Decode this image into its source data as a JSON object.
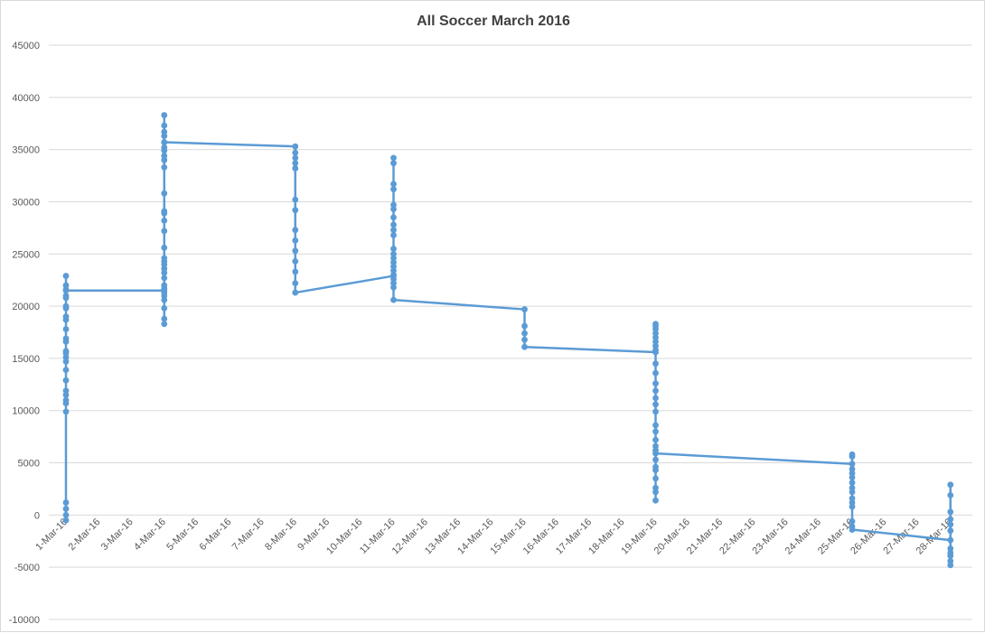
{
  "chart_data": {
    "type": "line",
    "title": "All Soccer March 2016",
    "xlabel": "",
    "ylabel": "",
    "ylim": [
      -10000,
      45000
    ],
    "yticks": [
      -10000,
      -5000,
      0,
      5000,
      10000,
      15000,
      20000,
      25000,
      30000,
      35000,
      40000,
      45000
    ],
    "grid": true,
    "legend": "none",
    "x_tick_labels": [
      "1-Mar-16",
      "2-Mar-16",
      "3-Mar-16",
      "4-Mar-16",
      "5-Mar-16",
      "6-Mar-16",
      "7-Mar-16",
      "8-Mar-16",
      "9-Mar-16",
      "10-Mar-16",
      "11-Mar-16",
      "12-Mar-16",
      "13-Mar-16",
      "14-Mar-16",
      "15-Mar-16",
      "16-Mar-16",
      "17-Mar-16",
      "18-Mar-16",
      "19-Mar-16",
      "20-Mar-16",
      "21-Mar-16",
      "22-Mar-16",
      "23-Mar-16",
      "24-Mar-16",
      "25-Mar-16",
      "26-Mar-16",
      "27-Mar-16",
      "28-Mar-16"
    ],
    "colors": {
      "series": "#5b9bd5",
      "grid": "#d9d9d9",
      "text": "#595959",
      "title": "#404040"
    },
    "series": [
      {
        "points": [
          {
            "x": "1-Mar-16",
            "y": -500
          },
          {
            "x": "1-Mar-16",
            "y": 0
          },
          {
            "x": "1-Mar-16",
            "y": 600
          },
          {
            "x": "1-Mar-16",
            "y": 1200
          },
          {
            "x": "1-Mar-16",
            "y": 9900
          },
          {
            "x": "1-Mar-16",
            "y": 10700
          },
          {
            "x": "1-Mar-16",
            "y": 11000
          },
          {
            "x": "1-Mar-16",
            "y": 11500
          },
          {
            "x": "1-Mar-16",
            "y": 11900
          },
          {
            "x": "1-Mar-16",
            "y": 12900
          },
          {
            "x": "1-Mar-16",
            "y": 13900
          },
          {
            "x": "1-Mar-16",
            "y": 14700
          },
          {
            "x": "1-Mar-16",
            "y": 15100
          },
          {
            "x": "1-Mar-16",
            "y": 15500
          },
          {
            "x": "1-Mar-16",
            "y": 15700
          },
          {
            "x": "1-Mar-16",
            "y": 16600
          },
          {
            "x": "1-Mar-16",
            "y": 16900
          },
          {
            "x": "1-Mar-16",
            "y": 17800
          },
          {
            "x": "1-Mar-16",
            "y": 18700
          },
          {
            "x": "1-Mar-16",
            "y": 19000
          },
          {
            "x": "1-Mar-16",
            "y": 19800
          },
          {
            "x": "1-Mar-16",
            "y": 20000
          },
          {
            "x": "1-Mar-16",
            "y": 20800
          },
          {
            "x": "1-Mar-16",
            "y": 21000
          },
          {
            "x": "1-Mar-16",
            "y": 21600
          },
          {
            "x": "1-Mar-16",
            "y": 22000
          },
          {
            "x": "1-Mar-16",
            "y": 22900
          },
          {
            "x": "1-Mar-16",
            "y": 21500
          },
          {
            "x": "4-Mar-16",
            "y": 21500
          },
          {
            "x": "4-Mar-16",
            "y": 18300
          },
          {
            "x": "4-Mar-16",
            "y": 18800
          },
          {
            "x": "4-Mar-16",
            "y": 19800
          },
          {
            "x": "4-Mar-16",
            "y": 20600
          },
          {
            "x": "4-Mar-16",
            "y": 21000
          },
          {
            "x": "4-Mar-16",
            "y": 21300
          },
          {
            "x": "4-Mar-16",
            "y": 21700
          },
          {
            "x": "4-Mar-16",
            "y": 22000
          },
          {
            "x": "4-Mar-16",
            "y": 22700
          },
          {
            "x": "4-Mar-16",
            "y": 23200
          },
          {
            "x": "4-Mar-16",
            "y": 23600
          },
          {
            "x": "4-Mar-16",
            "y": 24000
          },
          {
            "x": "4-Mar-16",
            "y": 24300
          },
          {
            "x": "4-Mar-16",
            "y": 24600
          },
          {
            "x": "4-Mar-16",
            "y": 25600
          },
          {
            "x": "4-Mar-16",
            "y": 27200
          },
          {
            "x": "4-Mar-16",
            "y": 28200
          },
          {
            "x": "4-Mar-16",
            "y": 28900
          },
          {
            "x": "4-Mar-16",
            "y": 29100
          },
          {
            "x": "4-Mar-16",
            "y": 30800
          },
          {
            "x": "4-Mar-16",
            "y": 33300
          },
          {
            "x": "4-Mar-16",
            "y": 34000
          },
          {
            "x": "4-Mar-16",
            "y": 34400
          },
          {
            "x": "4-Mar-16",
            "y": 34900
          },
          {
            "x": "4-Mar-16",
            "y": 35200
          },
          {
            "x": "4-Mar-16",
            "y": 35700
          },
          {
            "x": "4-Mar-16",
            "y": 36300
          },
          {
            "x": "4-Mar-16",
            "y": 36700
          },
          {
            "x": "4-Mar-16",
            "y": 37300
          },
          {
            "x": "4-Mar-16",
            "y": 38300
          },
          {
            "x": "4-Mar-16",
            "y": 35700
          },
          {
            "x": "8-Mar-16",
            "y": 35300
          },
          {
            "x": "8-Mar-16",
            "y": 34700
          },
          {
            "x": "8-Mar-16",
            "y": 34200
          },
          {
            "x": "8-Mar-16",
            "y": 33700
          },
          {
            "x": "8-Mar-16",
            "y": 33200
          },
          {
            "x": "8-Mar-16",
            "y": 30200
          },
          {
            "x": "8-Mar-16",
            "y": 29200
          },
          {
            "x": "8-Mar-16",
            "y": 27300
          },
          {
            "x": "8-Mar-16",
            "y": 26300
          },
          {
            "x": "8-Mar-16",
            "y": 25300
          },
          {
            "x": "8-Mar-16",
            "y": 24300
          },
          {
            "x": "8-Mar-16",
            "y": 23300
          },
          {
            "x": "8-Mar-16",
            "y": 22200
          },
          {
            "x": "8-Mar-16",
            "y": 21300
          },
          {
            "x": "11-Mar-16",
            "y": 22900
          },
          {
            "x": "11-Mar-16",
            "y": 21800
          },
          {
            "x": "11-Mar-16",
            "y": 22200
          },
          {
            "x": "11-Mar-16",
            "y": 22600
          },
          {
            "x": "11-Mar-16",
            "y": 23000
          },
          {
            "x": "11-Mar-16",
            "y": 23400
          },
          {
            "x": "11-Mar-16",
            "y": 23800
          },
          {
            "x": "11-Mar-16",
            "y": 24200
          },
          {
            "x": "11-Mar-16",
            "y": 24600
          },
          {
            "x": "11-Mar-16",
            "y": 25000
          },
          {
            "x": "11-Mar-16",
            "y": 25500
          },
          {
            "x": "11-Mar-16",
            "y": 26800
          },
          {
            "x": "11-Mar-16",
            "y": 27300
          },
          {
            "x": "11-Mar-16",
            "y": 27800
          },
          {
            "x": "11-Mar-16",
            "y": 28500
          },
          {
            "x": "11-Mar-16",
            "y": 29300
          },
          {
            "x": "11-Mar-16",
            "y": 29700
          },
          {
            "x": "11-Mar-16",
            "y": 31200
          },
          {
            "x": "11-Mar-16",
            "y": 31700
          },
          {
            "x": "11-Mar-16",
            "y": 33700
          },
          {
            "x": "11-Mar-16",
            "y": 34200
          },
          {
            "x": "11-Mar-16",
            "y": 20600
          },
          {
            "x": "15-Mar-16",
            "y": 19700
          },
          {
            "x": "15-Mar-16",
            "y": 18100
          },
          {
            "x": "15-Mar-16",
            "y": 17400
          },
          {
            "x": "15-Mar-16",
            "y": 16800
          },
          {
            "x": "15-Mar-16",
            "y": 16100
          },
          {
            "x": "19-Mar-16",
            "y": 15600
          },
          {
            "x": "19-Mar-16",
            "y": 15800
          },
          {
            "x": "19-Mar-16",
            "y": 16200
          },
          {
            "x": "19-Mar-16",
            "y": 16600
          },
          {
            "x": "19-Mar-16",
            "y": 17000
          },
          {
            "x": "19-Mar-16",
            "y": 17400
          },
          {
            "x": "19-Mar-16",
            "y": 17800
          },
          {
            "x": "19-Mar-16",
            "y": 18100
          },
          {
            "x": "19-Mar-16",
            "y": 18300
          },
          {
            "x": "19-Mar-16",
            "y": 14500
          },
          {
            "x": "19-Mar-16",
            "y": 13600
          },
          {
            "x": "19-Mar-16",
            "y": 12600
          },
          {
            "x": "19-Mar-16",
            "y": 11900
          },
          {
            "x": "19-Mar-16",
            "y": 11200
          },
          {
            "x": "19-Mar-16",
            "y": 10600
          },
          {
            "x": "19-Mar-16",
            "y": 9900
          },
          {
            "x": "19-Mar-16",
            "y": 8600
          },
          {
            "x": "19-Mar-16",
            "y": 8000
          },
          {
            "x": "19-Mar-16",
            "y": 7200
          },
          {
            "x": "19-Mar-16",
            "y": 6600
          },
          {
            "x": "19-Mar-16",
            "y": 6200
          },
          {
            "x": "19-Mar-16",
            "y": 5300
          },
          {
            "x": "19-Mar-16",
            "y": 4600
          },
          {
            "x": "19-Mar-16",
            "y": 4300
          },
          {
            "x": "19-Mar-16",
            "y": 3500
          },
          {
            "x": "19-Mar-16",
            "y": 2600
          },
          {
            "x": "19-Mar-16",
            "y": 2200
          },
          {
            "x": "19-Mar-16",
            "y": 1400
          },
          {
            "x": "19-Mar-16",
            "y": 5900
          },
          {
            "x": "25-Mar-16",
            "y": 4900
          },
          {
            "x": "25-Mar-16",
            "y": 5600
          },
          {
            "x": "25-Mar-16",
            "y": 5800
          },
          {
            "x": "25-Mar-16",
            "y": 4400
          },
          {
            "x": "25-Mar-16",
            "y": 4000
          },
          {
            "x": "25-Mar-16",
            "y": 3600
          },
          {
            "x": "25-Mar-16",
            "y": 3100
          },
          {
            "x": "25-Mar-16",
            "y": 2600
          },
          {
            "x": "25-Mar-16",
            "y": 2200
          },
          {
            "x": "25-Mar-16",
            "y": 1600
          },
          {
            "x": "25-Mar-16",
            "y": 1200
          },
          {
            "x": "25-Mar-16",
            "y": 800
          },
          {
            "x": "25-Mar-16",
            "y": -600
          },
          {
            "x": "25-Mar-16",
            "y": -1100
          },
          {
            "x": "25-Mar-16",
            "y": -1400
          },
          {
            "x": "28-Mar-16",
            "y": -2400
          },
          {
            "x": "28-Mar-16",
            "y": -1500
          },
          {
            "x": "28-Mar-16",
            "y": -900
          },
          {
            "x": "28-Mar-16",
            "y": -400
          },
          {
            "x": "28-Mar-16",
            "y": 300
          },
          {
            "x": "28-Mar-16",
            "y": 1900
          },
          {
            "x": "28-Mar-16",
            "y": 2900
          },
          {
            "x": "28-Mar-16",
            "y": -3200
          },
          {
            "x": "28-Mar-16",
            "y": -3600
          },
          {
            "x": "28-Mar-16",
            "y": -3900
          },
          {
            "x": "28-Mar-16",
            "y": -4400
          },
          {
            "x": "28-Mar-16",
            "y": -4800
          }
        ]
      }
    ]
  }
}
